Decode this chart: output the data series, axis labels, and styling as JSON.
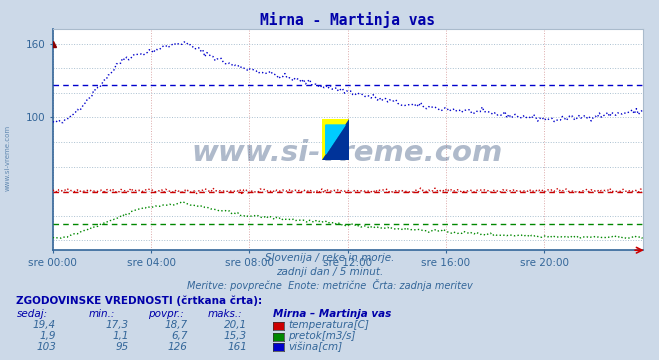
{
  "title": "Mirna - Martinja vas",
  "background_color": "#ccd9e8",
  "plot_bg_color": "#ffffff",
  "grid_color_h": "#aabccc",
  "grid_color_v": "#ddaaaa",
  "xlabel_times": [
    "sre 00:00",
    "sre 04:00",
    "sre 08:00",
    "sre 12:00",
    "sre 16:00",
    "sre 20:00"
  ],
  "ytick_vals": [
    100,
    160
  ],
  "ylim": [
    -8,
    172
  ],
  "xlim": [
    0,
    287
  ],
  "subtitle1": "Slovenija / reke in morje.",
  "subtitle2": "zadnji dan / 5 minut.",
  "subtitle3": "Meritve: povprečne  Enote: metrične  Črta: zadnja meritev",
  "table_header": "ZGODOVINSKE VREDNOSTI (črtkana črta):",
  "col_headers": [
    "sedaj:",
    "min.:",
    "povpr.:",
    "maks.:",
    "Mirna – Martinja vas"
  ],
  "row1": [
    "19,4",
    "17,3",
    "18,7",
    "20,1",
    "temperatura[C]"
  ],
  "row2": [
    "1,9",
    "1,1",
    "6,7",
    "15,3",
    "pretok[m3/s]"
  ],
  "row3": [
    "103",
    "95",
    "126",
    "161",
    "višina[cm]"
  ],
  "color_temp": "#cc0000",
  "color_flow": "#008800",
  "color_height": "#0000cc",
  "watermark": "www.si-vreme.com",
  "watermark_color": "#1a3a6a",
  "watermark_alpha": 0.35,
  "temp_avg": 18.7,
  "flow_avg": 6.7,
  "height_avg": 126,
  "temp_min": 17.3,
  "temp_max": 20.1,
  "flow_min": 1.1,
  "flow_max": 15.3,
  "height_min": 95,
  "height_max": 161,
  "temp_display_scale": 2.1,
  "flow_display_scale": 2.0
}
